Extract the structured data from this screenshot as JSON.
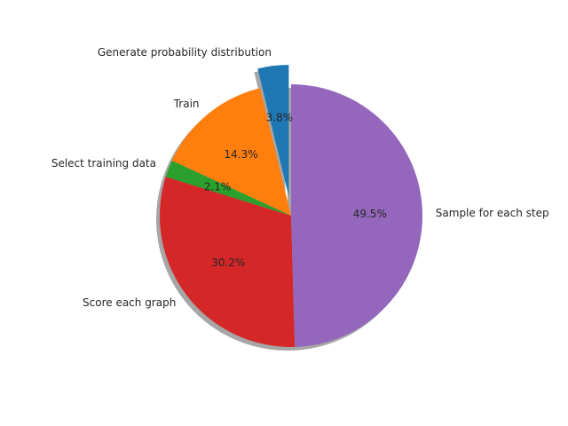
{
  "chart_data": {
    "type": "pie",
    "title": "",
    "shadow": true,
    "start_angle_deg": 90,
    "direction": "counterclockwise",
    "slices": [
      {
        "label": "Generate probability distribution",
        "value": 3.8,
        "pct_label": "3.8%",
        "color": "#1f77b4",
        "exploded": true
      },
      {
        "label": "Train",
        "value": 14.3,
        "pct_label": "14.3%",
        "color": "#ff7f0e",
        "exploded": false
      },
      {
        "label": "Select training data",
        "value": 2.1,
        "pct_label": "2.1%",
        "color": "#2ca02c",
        "exploded": false
      },
      {
        "label": "Score each graph",
        "value": 30.2,
        "pct_label": "30.2%",
        "color": "#d62728",
        "exploded": false
      },
      {
        "label": "Sample for each step",
        "value": 49.5,
        "pct_label": "49.5%",
        "color": "#9467bd",
        "exploded": false
      }
    ]
  }
}
